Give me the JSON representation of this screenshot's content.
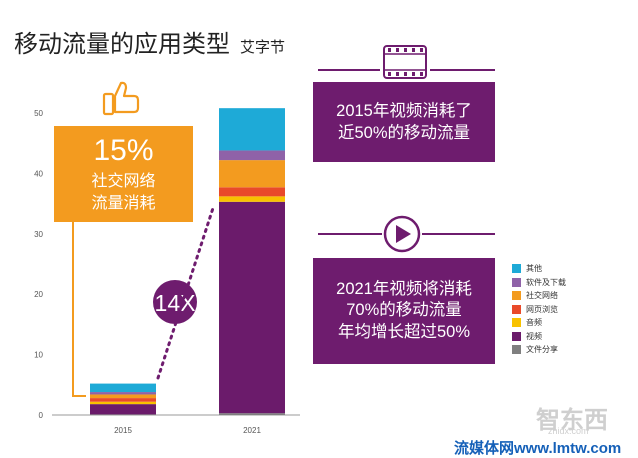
{
  "page": {
    "title": "移动流量的应用类型",
    "subtitle": "艾字节",
    "social_callout": {
      "percent": "15%",
      "line1": "社交网络",
      "line2": "流量消耗"
    },
    "growth_badge": "14X",
    "callout_2015": {
      "line1": "2015年视频消耗了",
      "line2": "近50%的移动流量"
    },
    "callout_2021": {
      "line1": "2021年视频将消耗",
      "line2": "70%的移动流量",
      "line3": "年均增长超过50%"
    },
    "watermark": {
      "logo": "智东西",
      "domain": "zhidx.com",
      "site": "流媒体网www.lmtw.com"
    }
  },
  "colors": {
    "purple": "#6b1b6b",
    "orange": "#f39b1f",
    "callout_purple": "#6e1c6e"
  },
  "chart_data": {
    "type": "bar",
    "stacked": true,
    "categories": [
      "2015",
      "2021"
    ],
    "ylim": [
      0,
      50
    ],
    "yticks": [
      0,
      10,
      20,
      30,
      40,
      50
    ],
    "legend_position": "right",
    "series": [
      {
        "name": "文件分享",
        "color": "#7f7f7f",
        "values": [
          0.1,
          0.3
        ]
      },
      {
        "name": "视频",
        "color": "#6b1b6b",
        "values": [
          1.7,
          35.0
        ]
      },
      {
        "name": "音频",
        "color": "#f8c200",
        "values": [
          0.4,
          0.9
        ]
      },
      {
        "name": "网页浏览",
        "color": "#e94a2a",
        "values": [
          0.6,
          1.5
        ]
      },
      {
        "name": "社交网络",
        "color": "#f39b1f",
        "values": [
          0.6,
          4.5
        ]
      },
      {
        "name": "软件及下载",
        "color": "#8f62a8",
        "values": [
          0.4,
          1.6
        ]
      },
      {
        "name": "其他",
        "color": "#1eaad7",
        "values": [
          1.4,
          7.0
        ]
      }
    ]
  }
}
